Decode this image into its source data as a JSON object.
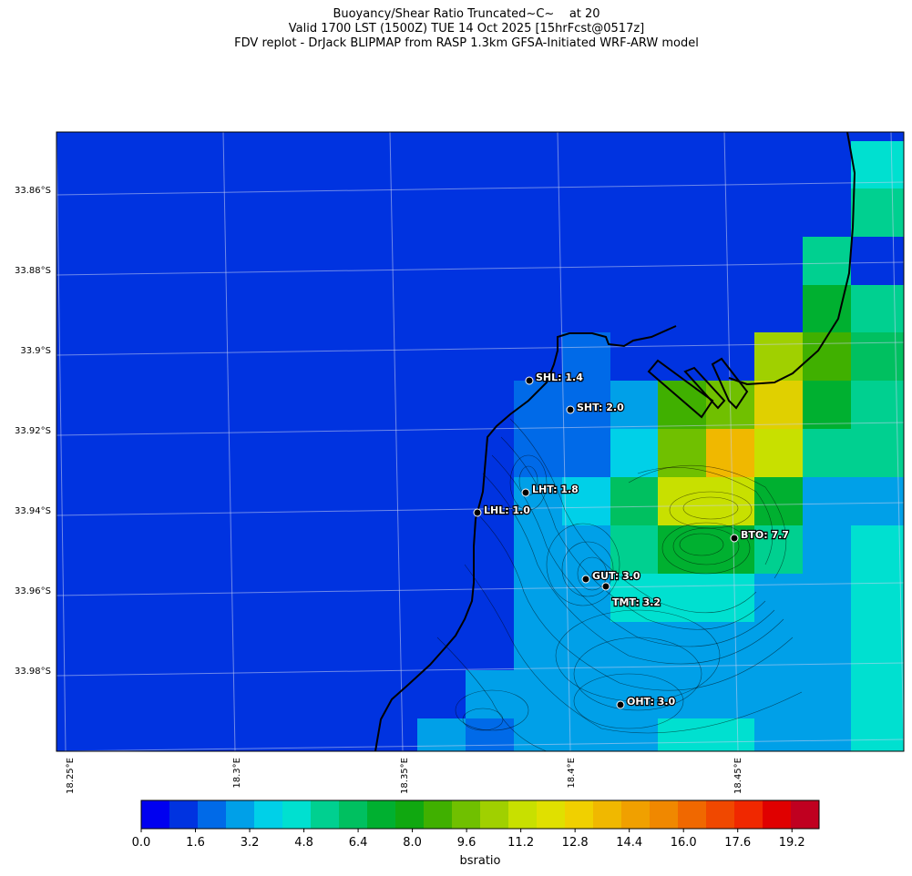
{
  "title": {
    "line1": "Buoyancy/Shear Ratio Truncated~C~    at 20",
    "line2": "Valid 1700 LST (1500Z) TUE 14 Oct 2025 [15hrFcst@0517z]",
    "line3": "FDV replot - DrJack BLIPMAP from RASP 1.3km GFSA-Initiated WRF-ARW model"
  },
  "map": {
    "lat_labels": [
      "33.86°S",
      "33.88°S",
      "33.9°S",
      "33.92°S",
      "33.94°S",
      "33.96°S",
      "33.98°S"
    ],
    "lon_labels": [
      "18.25°E",
      "18.3°E",
      "18.35°E",
      "18.4°E",
      "18.45°E"
    ],
    "stations": [
      {
        "label": "SHL: 1.4",
        "value": 1.4
      },
      {
        "label": "SHT: 2.0",
        "value": 2.0
      },
      {
        "label": "LHT: 1.8",
        "value": 1.8
      },
      {
        "label": "LHL: 1.0",
        "value": 1.0
      },
      {
        "label": "BTO: 7.7",
        "value": 7.7
      },
      {
        "label": "GUT: 3.0",
        "value": 3.0
      },
      {
        "label": "TMT: 3.2",
        "value": 3.2
      },
      {
        "label": "OHT: 3.0",
        "value": 3.0
      }
    ]
  },
  "colorbar": {
    "label": "bsratio",
    "ticks": [
      "0.0",
      "1.6",
      "3.2",
      "4.8",
      "6.4",
      "8.0",
      "9.6",
      "11.2",
      "12.8",
      "14.4",
      "16.0",
      "17.6",
      "19.2"
    ],
    "min": 0,
    "max": 20,
    "colors": [
      "#0000f0",
      "#0033e0",
      "#006ae8",
      "#00a0e8",
      "#00d0e8",
      "#00e0d0",
      "#00d090",
      "#00c060",
      "#00b030",
      "#10a810",
      "#40b000",
      "#70c000",
      "#a0d000",
      "#c8e000",
      "#e0e000",
      "#f0d000",
      "#f0b800",
      "#f0a000",
      "#f08800",
      "#f06800",
      "#f04800",
      "#f02800",
      "#e00000",
      "#c00020"
    ]
  }
}
